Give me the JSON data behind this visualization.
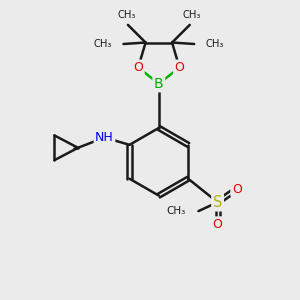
{
  "background_color": "#ebebeb",
  "bond_color": "#1a1a1a",
  "atom_colors": {
    "O": "#e60000",
    "B": "#00b300",
    "N": "#0000e6",
    "S": "#b3b300",
    "C": "#1a1a1a",
    "H": "#404040"
  },
  "line_width": 1.8,
  "figsize": [
    3.0,
    3.0
  ],
  "dpi": 100,
  "xlim": [
    0,
    10
  ],
  "ylim": [
    0,
    10
  ]
}
